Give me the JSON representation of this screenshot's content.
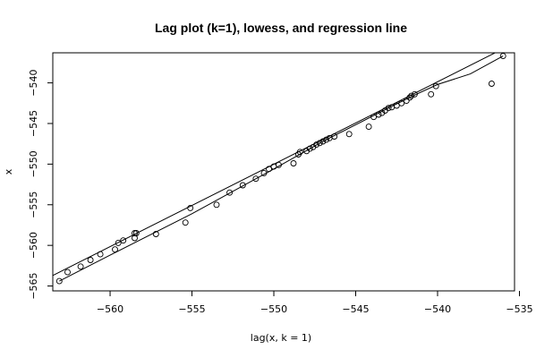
{
  "chart_data": {
    "type": "scatter",
    "title": "Lag plot (k=1), lowess, and regression line",
    "xlabel": "lag(x, k = 1)",
    "ylabel": "x",
    "xlim": [
      -563.5,
      -535.3
    ],
    "ylim": [
      -565.6,
      -536.3
    ],
    "x_ticks": [
      -560,
      -555,
      -550,
      -545,
      -540,
      -535
    ],
    "y_ticks": [
      -540,
      -545,
      -550,
      -555,
      -560,
      -565
    ],
    "x_tick_labels": [
      "−560",
      "−555",
      "−550",
      "−545",
      "−540",
      "−535"
    ],
    "y_tick_labels": [
      "−540",
      "−545",
      "−550",
      "−555",
      "−560",
      "−565"
    ],
    "grid": false,
    "points": [
      [
        -563.1,
        -564.4
      ],
      [
        -562.6,
        -563.3
      ],
      [
        -561.8,
        -562.6
      ],
      [
        -561.2,
        -561.8
      ],
      [
        -560.6,
        -561.1
      ],
      [
        -559.7,
        -560.5
      ],
      [
        -559.5,
        -559.7
      ],
      [
        -559.2,
        -559.4
      ],
      [
        -558.5,
        -559.1
      ],
      [
        -558.5,
        -558.5
      ],
      [
        -558.4,
        -558.5
      ],
      [
        -557.2,
        -558.6
      ],
      [
        -555.4,
        -557.2
      ],
      [
        -555.1,
        -555.4
      ],
      [
        -553.5,
        -555.0
      ],
      [
        -552.7,
        -553.5
      ],
      [
        -551.9,
        -552.6
      ],
      [
        -551.1,
        -551.8
      ],
      [
        -550.6,
        -551.1
      ],
      [
        -550.3,
        -550.6
      ],
      [
        -550.0,
        -550.3
      ],
      [
        -549.7,
        -550.1
      ],
      [
        -548.8,
        -549.9
      ],
      [
        -548.5,
        -548.8
      ],
      [
        -548.4,
        -548.5
      ],
      [
        -548.0,
        -548.4
      ],
      [
        -547.8,
        -548.1
      ],
      [
        -547.6,
        -547.9
      ],
      [
        -547.4,
        -547.6
      ],
      [
        -547.2,
        -547.4
      ],
      [
        -547.0,
        -547.2
      ],
      [
        -546.8,
        -547.0
      ],
      [
        -546.6,
        -546.8
      ],
      [
        -546.3,
        -546.6
      ],
      [
        -545.4,
        -546.3
      ],
      [
        -544.2,
        -545.4
      ],
      [
        -543.9,
        -544.2
      ],
      [
        -543.6,
        -543.9
      ],
      [
        -543.4,
        -543.7
      ],
      [
        -543.2,
        -543.4
      ],
      [
        -543.0,
        -543.1
      ],
      [
        -542.8,
        -543.0
      ],
      [
        -542.5,
        -542.8
      ],
      [
        -542.2,
        -542.5
      ],
      [
        -541.9,
        -542.2
      ],
      [
        -541.7,
        -541.8
      ],
      [
        -541.6,
        -541.6
      ],
      [
        -541.4,
        -541.4
      ],
      [
        -540.4,
        -541.4
      ],
      [
        -540.1,
        -540.4
      ],
      [
        -536.7,
        -540.1
      ],
      [
        -536.0,
        -536.7
      ]
    ],
    "regression_line": [
      [
        -563.5,
        -563.7
      ],
      [
        -536.0,
        -535.8
      ]
    ],
    "lowess_line": [
      [
        -563.1,
        -564.4
      ],
      [
        -560.0,
        -561.2
      ],
      [
        -555.0,
        -556.1
      ],
      [
        -550.0,
        -550.6
      ],
      [
        -547.0,
        -547.2
      ],
      [
        -543.0,
        -543.1
      ],
      [
        -541.5,
        -541.6
      ],
      [
        -540.0,
        -540.2
      ],
      [
        -538.0,
        -538.9
      ],
      [
        -536.0,
        -536.7
      ]
    ]
  }
}
